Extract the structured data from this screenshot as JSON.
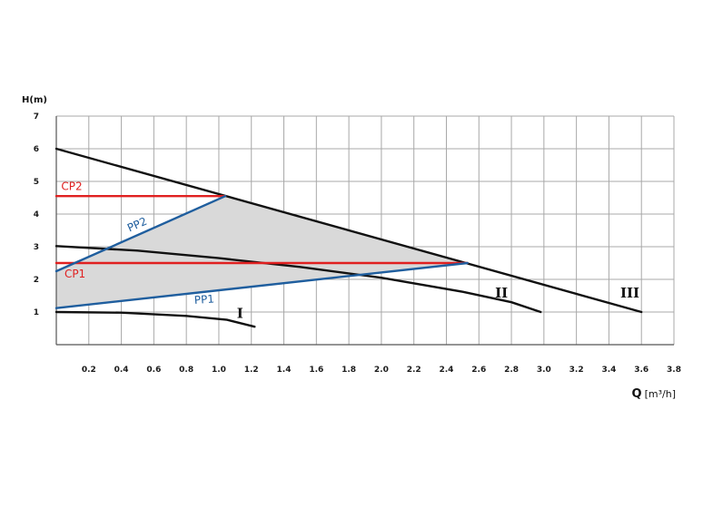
{
  "chart_data": {
    "type": "line",
    "title": "",
    "ylabel": "H(m)",
    "xlabel": "Q",
    "xlabel_unit": "[m³/h]",
    "xlim": [
      0,
      3.8
    ],
    "ylim": [
      0,
      7
    ],
    "grid": true,
    "xticks": [
      "0.2",
      "0.4",
      "0.6",
      "0.8",
      "1.0",
      "1.2",
      "1.4",
      "1.6",
      "1.8",
      "2.0",
      "2.2",
      "2.4",
      "2.6",
      "2.8",
      "3.0",
      "3.2",
      "3.4",
      "3.6",
      "3.8"
    ],
    "yticks": [
      "1",
      "2",
      "3",
      "4",
      "5",
      "6",
      "7"
    ],
    "colors": {
      "curve": "#111111",
      "cp": "#e02020",
      "pp": "#1f5e9e",
      "area": "#d9d9d9",
      "grid": "#a8a8a8"
    },
    "operating_area": [
      {
        "x": 0,
        "y": 1.12
      },
      {
        "x": 0,
        "y": 2.25
      },
      {
        "x": 1.04,
        "y": 4.55
      },
      {
        "x": 2.53,
        "y": 2.5
      }
    ],
    "series": [
      {
        "name": "III",
        "color": "#111111",
        "points": [
          {
            "x": 0,
            "y": 6.0
          },
          {
            "x": 3.6,
            "y": 1.0
          }
        ]
      },
      {
        "name": "II",
        "color": "#111111",
        "points": [
          {
            "x": 0,
            "y": 3.02
          },
          {
            "x": 0.5,
            "y": 2.88
          },
          {
            "x": 1.0,
            "y": 2.65
          },
          {
            "x": 1.5,
            "y": 2.38
          },
          {
            "x": 2.0,
            "y": 2.05
          },
          {
            "x": 2.5,
            "y": 1.62
          },
          {
            "x": 2.8,
            "y": 1.3
          },
          {
            "x": 2.98,
            "y": 1.0
          }
        ]
      },
      {
        "name": "I",
        "color": "#111111",
        "points": [
          {
            "x": 0,
            "y": 1.0
          },
          {
            "x": 0.4,
            "y": 0.98
          },
          {
            "x": 0.8,
            "y": 0.88
          },
          {
            "x": 1.05,
            "y": 0.76
          },
          {
            "x": 1.22,
            "y": 0.55
          }
        ]
      },
      {
        "name": "CP2",
        "color": "#e02020",
        "points": [
          {
            "x": 0,
            "y": 4.55
          },
          {
            "x": 1.04,
            "y": 4.55
          }
        ]
      },
      {
        "name": "CP1",
        "color": "#e02020",
        "points": [
          {
            "x": 0,
            "y": 2.5
          },
          {
            "x": 2.53,
            "y": 2.5
          }
        ]
      },
      {
        "name": "PP2",
        "color": "#1f5e9e",
        "points": [
          {
            "x": 0,
            "y": 2.25
          },
          {
            "x": 1.04,
            "y": 4.55
          }
        ]
      },
      {
        "name": "PP1",
        "color": "#1f5e9e",
        "points": [
          {
            "x": 0,
            "y": 1.12
          },
          {
            "x": 2.53,
            "y": 2.5
          }
        ]
      }
    ]
  }
}
